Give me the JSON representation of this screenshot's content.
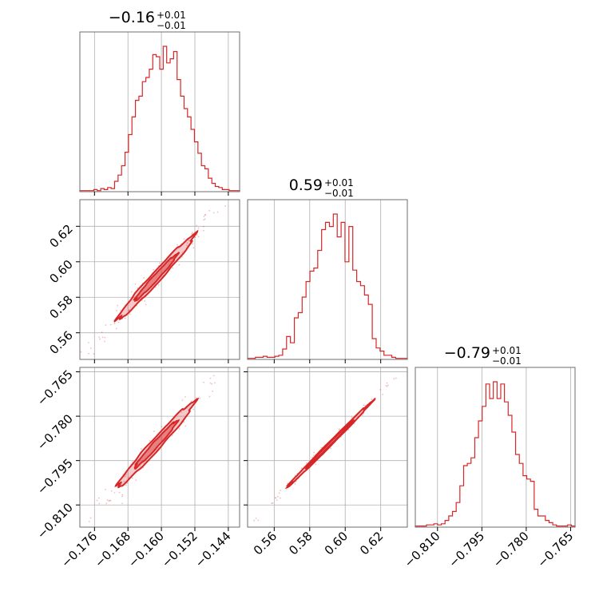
{
  "chart_data": {
    "type": "corner",
    "color": "#d62728",
    "grid": true,
    "parameters": [
      {
        "title": {
          "value": "−0.16",
          "plus": "+0.01",
          "minus": "−0.01"
        },
        "range": [
          -0.1795,
          -0.1413
        ],
        "ticks": [
          -0.176,
          -0.168,
          -0.16,
          -0.152,
          -0.144
        ],
        "tick_labels": [
          "−0.176",
          "−0.168",
          "−0.160",
          "−0.152",
          "−0.144"
        ],
        "hist": [
          1,
          1,
          1,
          1,
          2,
          1,
          3,
          2,
          4,
          3,
          10,
          16,
          25,
          38,
          55,
          72,
          88,
          92,
          106,
          110,
          118,
          132,
          130,
          118,
          140,
          124,
          128,
          135,
          108,
          92,
          80,
          72,
          60,
          48,
          37,
          25,
          22,
          13,
          8,
          5,
          4,
          2,
          2,
          1,
          1,
          1
        ]
      },
      {
        "title": {
          "value": "0.59",
          "plus": "+0.01",
          "minus": "−0.01"
        },
        "range": [
          0.545,
          0.635
        ],
        "ticks": [
          0.56,
          0.58,
          0.6,
          0.62
        ],
        "tick_labels": [
          "0.56",
          "0.58",
          "0.60",
          "0.62"
        ],
        "hist": [
          1,
          1,
          2,
          2,
          3,
          2,
          2,
          3,
          4,
          10,
          22,
          16,
          40,
          45,
          60,
          75,
          85,
          88,
          105,
          125,
          132,
          128,
          140,
          118,
          132,
          94,
          128,
          86,
          75,
          71,
          62,
          53,
          20,
          11,
          8,
          4,
          4,
          2,
          1,
          1,
          1
        ]
      },
      {
        "title": {
          "value": "−0.79",
          "plus": "+0.01",
          "minus": "−0.01"
        },
        "range": [
          -0.8175,
          -0.7635
        ],
        "ticks": [
          -0.81,
          -0.795,
          -0.78,
          -0.765
        ],
        "tick_labels": [
          "−0.810",
          "−0.795",
          "−0.780",
          "−0.765"
        ],
        "hist": [
          1,
          1,
          1,
          2,
          2,
          3,
          2,
          3,
          6,
          10,
          14,
          22,
          37,
          55,
          57,
          62,
          80,
          95,
          108,
          128,
          115,
          130,
          115,
          128,
          112,
          100,
          85,
          65,
          57,
          46,
          43,
          41,
          16,
          10,
          10,
          6,
          4,
          2,
          1,
          1,
          1,
          2,
          1
        ]
      }
    ],
    "pairs": [
      {
        "row": 1,
        "col": 0,
        "x_center": -0.1613,
        "y_center": 0.5912,
        "x_std": 0.0046,
        "y_std": 0.0119,
        "corr": 0.985
      },
      {
        "row": 2,
        "col": 0,
        "x_center": -0.1613,
        "y_center": -0.7895,
        "x_std": 0.0046,
        "y_std": 0.0072,
        "corr": 0.983
      },
      {
        "row": 2,
        "col": 1,
        "x_center": 0.5912,
        "y_center": -0.7895,
        "x_std": 0.0119,
        "y_std": 0.0072,
        "corr": 0.998
      }
    ],
    "contour_levels": [
      0.39,
      0.86
    ]
  }
}
